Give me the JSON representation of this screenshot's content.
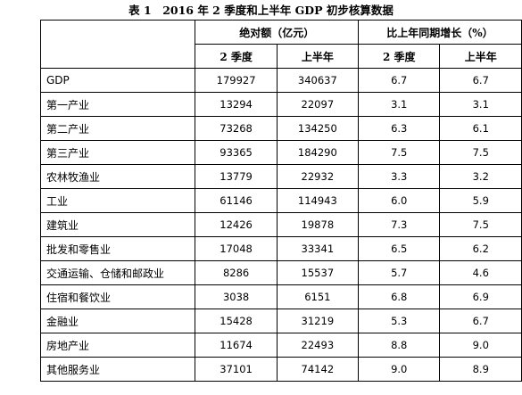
{
  "title": "表 1　2016 年 2 季度和上半年 GDP 初步核算数据",
  "header": {
    "group_abs": "绝对额（亿元）",
    "group_growth": "比上年同期增长（%）",
    "sub": [
      "2 季度",
      "上半年",
      "2 季度",
      "上半年"
    ]
  },
  "rows": [
    {
      "label": "GDP",
      "values": [
        "179927",
        "340637",
        "6.7",
        "6.7"
      ]
    },
    {
      "label": "第一产业",
      "values": [
        "13294",
        "22097",
        "3.1",
        "3.1"
      ]
    },
    {
      "label": "第二产业",
      "values": [
        "73268",
        "134250",
        "6.3",
        "6.1"
      ]
    },
    {
      "label": "第三产业",
      "values": [
        "93365",
        "184290",
        "7.5",
        "7.5"
      ]
    },
    {
      "label": "农林牧渔业",
      "values": [
        "13779",
        "22932",
        "3.3",
        "3.2"
      ]
    },
    {
      "label": "工业",
      "values": [
        "61146",
        "114943",
        "6.0",
        "5.9"
      ]
    },
    {
      "label": "建筑业",
      "values": [
        "12426",
        "19878",
        "7.3",
        "7.5"
      ]
    },
    {
      "label": "批发和零售业",
      "values": [
        "17048",
        "33341",
        "6.5",
        "6.2"
      ]
    },
    {
      "label": "交通运输、仓储和邮政业",
      "values": [
        "8286",
        "15537",
        "5.7",
        "4.6"
      ]
    },
    {
      "label": "住宿和餐饮业",
      "values": [
        "3038",
        "6151",
        "6.8",
        "6.9"
      ]
    },
    {
      "label": "金融业",
      "values": [
        "15428",
        "31219",
        "5.3",
        "6.7"
      ]
    },
    {
      "label": "房地产业",
      "values": [
        "11674",
        "22493",
        "8.8",
        "9.0"
      ]
    },
    {
      "label": "其他服务业",
      "values": [
        "37101",
        "74142",
        "9.0",
        "8.9"
      ]
    }
  ]
}
